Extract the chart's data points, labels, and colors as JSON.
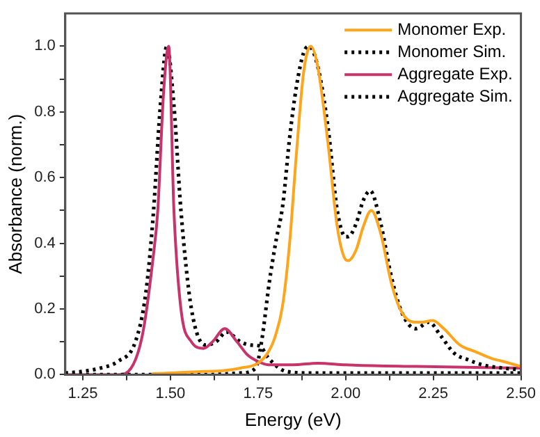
{
  "chart_data": {
    "type": "line",
    "xlabel": "Energy (eV)",
    "ylabel": "Absorbance (norm.)",
    "xlim": [
      1.2,
      2.5
    ],
    "ylim": [
      0,
      1.1
    ],
    "xticks": [
      {
        "value": 1.25,
        "label": "1.25"
      },
      {
        "value": 1.375,
        "label": null
      },
      {
        "value": 1.5,
        "label": "1.50"
      },
      {
        "value": 1.625,
        "label": null
      },
      {
        "value": 1.75,
        "label": "1.75"
      },
      {
        "value": 1.875,
        "label": null
      },
      {
        "value": 2.0,
        "label": "2.00"
      },
      {
        "value": 2.125,
        "label": null
      },
      {
        "value": 2.25,
        "label": "2.25"
      },
      {
        "value": 2.375,
        "label": null
      },
      {
        "value": 2.5,
        "label": "2.50"
      }
    ],
    "yticks": [
      {
        "value": 0,
        "label": "0.0"
      },
      {
        "value": 0.1,
        "label": null
      },
      {
        "value": 0.2,
        "label": "0.2"
      },
      {
        "value": 0.3,
        "label": null
      },
      {
        "value": 0.4,
        "label": "0.4"
      },
      {
        "value": 0.5,
        "label": null
      },
      {
        "value": 0.6,
        "label": "0.6"
      },
      {
        "value": 0.7,
        "label": null
      },
      {
        "value": 0.8,
        "label": "0.8"
      },
      {
        "value": 0.9,
        "label": null
      },
      {
        "value": 1.0,
        "label": "1.0"
      }
    ],
    "grid": false,
    "legend": "top right",
    "marker": "none",
    "series": [
      {
        "name": "Monomer Exp.",
        "color": "#ffa51c",
        "line_style": "solid",
        "x": [
          1.45,
          1.5,
          1.6,
          1.65,
          1.7,
          1.75,
          1.78,
          1.8,
          1.82,
          1.84,
          1.86,
          1.88,
          1.9,
          1.92,
          1.95,
          1.976,
          2.0,
          2.007,
          2.03,
          2.05,
          2.073,
          2.1,
          2.13,
          2.16,
          2.196,
          2.22,
          2.248,
          2.28,
          2.326,
          2.37,
          2.415,
          2.45,
          2.5
        ],
        "values": [
          0.003,
          0.005,
          0.01,
          0.012,
          0.02,
          0.035,
          0.07,
          0.12,
          0.21,
          0.4,
          0.68,
          0.92,
          1.0,
          0.94,
          0.7,
          0.45,
          0.35,
          0.347,
          0.38,
          0.45,
          0.5,
          0.43,
          0.28,
          0.19,
          0.16,
          0.16,
          0.165,
          0.14,
          0.09,
          0.07,
          0.05,
          0.04,
          0.025
        ]
      },
      {
        "name": "Monomer Sim.",
        "color": "#000000",
        "line_style": "dotted",
        "x": [
          1.2,
          1.6,
          1.7,
          1.743,
          1.76,
          1.782,
          1.8,
          1.821,
          1.84,
          1.86,
          1.88,
          1.895,
          1.92,
          1.95,
          1.976,
          2.0,
          2.007,
          2.03,
          2.05,
          2.07,
          2.1,
          2.13,
          2.16,
          2.2,
          2.238,
          2.27,
          2.31,
          2.35,
          2.39,
          2.45,
          2.5
        ],
        "values": [
          0,
          0,
          0.005,
          0.02,
          0.1,
          0.28,
          0.4,
          0.52,
          0.72,
          0.88,
          0.98,
          1.0,
          0.94,
          0.75,
          0.5,
          0.42,
          0.42,
          0.46,
          0.53,
          0.56,
          0.46,
          0.3,
          0.19,
          0.14,
          0.16,
          0.12,
          0.065,
          0.045,
          0.03,
          0.02,
          0.015
        ]
      },
      {
        "name": "Aggregate Exp.",
        "color": "#c8336b",
        "line_style": "solid",
        "x": [
          1.2,
          1.35,
          1.38,
          1.42,
          1.45,
          1.464,
          1.48,
          1.495,
          1.51,
          1.53,
          1.56,
          1.595,
          1.62,
          1.655,
          1.69,
          1.72,
          1.75,
          1.78,
          1.85,
          1.92,
          2.0,
          2.2,
          2.5
        ],
        "values": [
          0,
          0,
          0.01,
          0.12,
          0.35,
          0.5,
          0.85,
          1.0,
          0.5,
          0.2,
          0.1,
          0.08,
          0.1,
          0.14,
          0.1,
          0.06,
          0.04,
          0.03,
          0.03,
          0.035,
          0.03,
          0.025,
          0.02
        ]
      },
      {
        "name": "Aggregate Sim.",
        "color": "#000000",
        "line_style": "dotted",
        "x": [
          1.2,
          1.25,
          1.3,
          1.35,
          1.4,
          1.43,
          1.452,
          1.47,
          1.49,
          1.51,
          1.53,
          1.56,
          1.6,
          1.63,
          1.66,
          1.7,
          1.73,
          1.755,
          1.78,
          1.83,
          1.9,
          2.0,
          2.2,
          2.5
        ],
        "values": [
          0.005,
          0.01,
          0.02,
          0.04,
          0.1,
          0.25,
          0.5,
          0.8,
          1.0,
          0.82,
          0.5,
          0.2,
          0.09,
          0.1,
          0.13,
          0.1,
          0.09,
          0.087,
          0.05,
          0.01,
          0.005,
          0.005,
          0.005,
          0.005
        ]
      }
    ]
  }
}
